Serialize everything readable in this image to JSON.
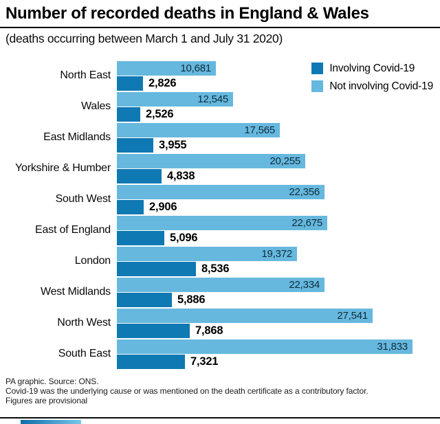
{
  "header": {
    "title": "Number of recorded deaths in England & Wales",
    "subtitle": "(deaths occurring between March 1 and July 31 2020)"
  },
  "colors": {
    "involving_covid": "#0f79b3",
    "not_involving_covid": "#66b8de",
    "brand_gradient_start": "#0d6ca8",
    "brand_gradient_end": "#79c7ea"
  },
  "legend": [
    {
      "label": "Involving Covid-19",
      "color": "#0f79b3"
    },
    {
      "label": "Not involving Covid-19",
      "color": "#66b8de"
    }
  ],
  "chart_data": {
    "type": "bar",
    "orientation": "horizontal",
    "title": "Number of recorded deaths in England & Wales",
    "subtitle": "(deaths occurring between March 1 and July 31 2020)",
    "xlim": [
      0,
      31833
    ],
    "grid": false,
    "legend_position": "top-right",
    "categories": [
      "North East",
      "Wales",
      "East Midlands",
      "Yorkshire & Humber",
      "South West",
      "East of England",
      "London",
      "West Midlands",
      "North West",
      "South East"
    ],
    "series": [
      {
        "name": "Not involving Covid-19",
        "color": "#66b8de",
        "values": [
          10681,
          12545,
          17565,
          20255,
          22356,
          22675,
          19372,
          22334,
          27541,
          31833
        ],
        "labels": [
          "10,681",
          "12,545",
          "17,565",
          "20,255",
          "22,356",
          "22,675",
          "19,372",
          "22,334",
          "27,541",
          "31,833"
        ]
      },
      {
        "name": "Involving Covid-19",
        "color": "#0f79b3",
        "values": [
          2826,
          2526,
          3955,
          4838,
          2906,
          5096,
          8536,
          5886,
          7868,
          7321
        ],
        "labels": [
          "2,826",
          "2,526",
          "3,955",
          "4,838",
          "2,906",
          "5,096",
          "8,536",
          "5,886",
          "7,868",
          "7,321"
        ]
      }
    ]
  },
  "footer": {
    "line1": "PA graphic. Source: ONS.",
    "line2": "Covid-19 was the underlying cause or was mentioned on the death certificate as a contributory factor.",
    "line3": "Figures are provisional"
  }
}
